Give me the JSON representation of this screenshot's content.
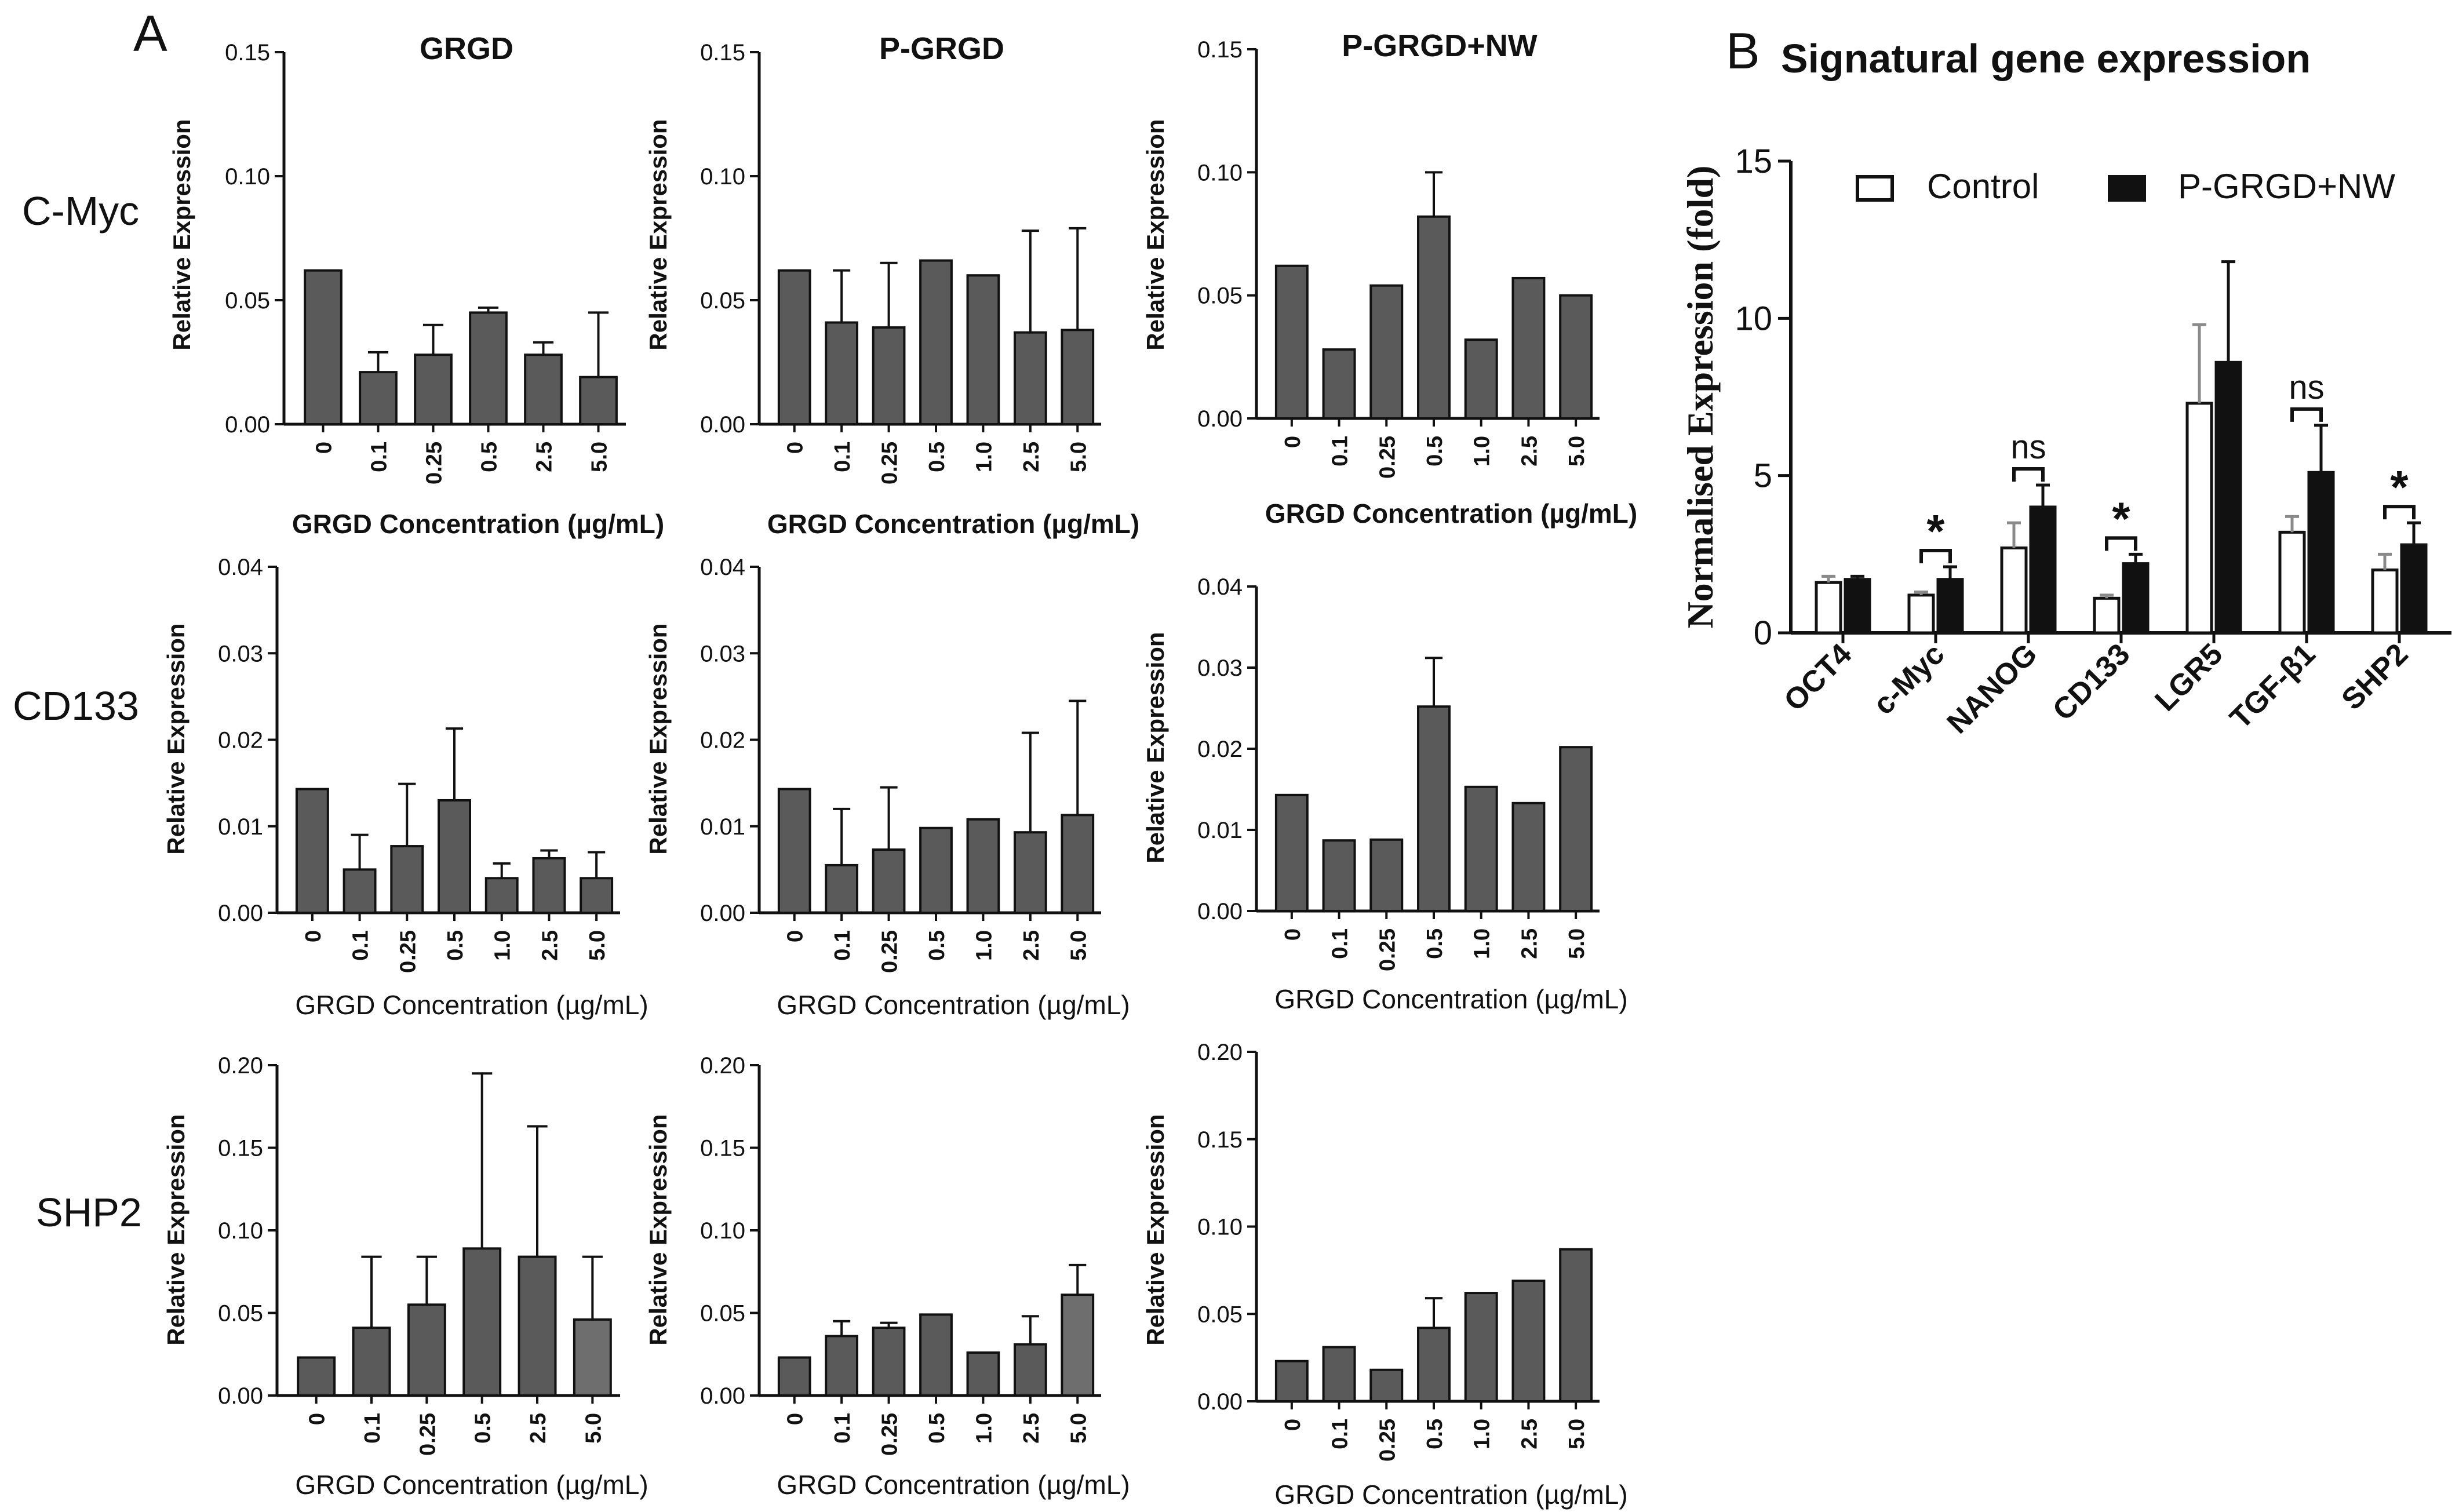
{
  "panel_labels": {
    "a": "A",
    "b": "B"
  },
  "row_labels": [
    "C-Myc",
    "CD133",
    "SHP2"
  ],
  "col_titles": [
    "GRGD",
    "P-GRGD",
    "P-GRGD+NW"
  ],
  "grid_ylabel": "Relative Expression",
  "grid_xlabel": "GRGD Concentration (µg/mL)",
  "colors": {
    "bar": "#5a5a5a",
    "bar_light": "#6e6e6e",
    "ink": "#111111",
    "control_fill": "#ffffff",
    "treat_fill": "#111111"
  },
  "chart_data": [
    {
      "id": "cmyc-grgd",
      "type": "bar",
      "title": "GRGD",
      "row": "C-Myc",
      "ylabel": "Relative Expression",
      "xlabel": "GRGD Concentration (µg/mL)",
      "ylim": [
        0,
        0.15
      ],
      "yticks": [
        "0.00",
        "0.05",
        "0.10",
        "0.15"
      ],
      "categories": [
        "0",
        "0.1",
        "0.25",
        "0.5",
        "2.5",
        "5.0"
      ],
      "values": [
        0.062,
        0.021,
        0.028,
        0.045,
        0.028,
        0.019
      ],
      "errors": [
        0,
        0.008,
        0.012,
        0.002,
        0.005,
        0.026
      ]
    },
    {
      "id": "cmyc-pgrgd",
      "type": "bar",
      "title": "P-GRGD",
      "row": "C-Myc",
      "ylabel": "Relative Expression",
      "xlabel": "GRGD Concentration (µg/mL)",
      "ylim": [
        0,
        0.15
      ],
      "yticks": [
        "0.00",
        "0.05",
        "0.10",
        "0.15"
      ],
      "categories": [
        "0",
        "0.1",
        "0.25",
        "0.5",
        "1.0",
        "2.5",
        "5.0"
      ],
      "values": [
        0.062,
        0.041,
        0.039,
        0.066,
        0.06,
        0.037,
        0.038
      ],
      "errors": [
        0,
        0.021,
        0.026,
        0,
        0,
        0.041,
        0.041
      ]
    },
    {
      "id": "cmyc-pgrgdnw",
      "type": "bar",
      "title": "P-GRGD+NW",
      "row": "C-Myc",
      "ylabel": "Relative Expression",
      "xlabel": "GRGD Concentration (µg/mL)",
      "ylim": [
        0,
        0.15
      ],
      "yticks": [
        "0.00",
        "0.05",
        "0.10",
        "0.15"
      ],
      "categories": [
        "0",
        "0.1",
        "0.25",
        "0.5",
        "1.0",
        "2.5",
        "5.0"
      ],
      "values": [
        0.062,
        0.028,
        0.054,
        0.082,
        0.032,
        0.057,
        0.05
      ],
      "errors": [
        0,
        0,
        0,
        0.018,
        0,
        0,
        0
      ]
    },
    {
      "id": "cd133-grgd",
      "type": "bar",
      "title": "",
      "row": "CD133",
      "ylabel": "Relative Expression",
      "xlabel": "GRGD Concentration (µg/mL)",
      "ylim": [
        0,
        0.04
      ],
      "yticks": [
        "0.00",
        "0.01",
        "0.02",
        "0.03",
        "0.04"
      ],
      "categories": [
        "0",
        "0.1",
        "0.25",
        "0.5",
        "1.0",
        "2.5",
        "5.0"
      ],
      "values": [
        0.0143,
        0.005,
        0.0077,
        0.013,
        0.004,
        0.0063,
        0.004
      ],
      "errors": [
        0,
        0.004,
        0.0072,
        0.0083,
        0.0017,
        0.0009,
        0.003
      ]
    },
    {
      "id": "cd133-pgrgd",
      "type": "bar",
      "title": "",
      "row": "CD133",
      "ylabel": "Relative Expression",
      "xlabel": "GRGD Concentration (µg/mL)",
      "ylim": [
        0,
        0.04
      ],
      "yticks": [
        "0.00",
        "0.01",
        "0.02",
        "0.03",
        "0.04"
      ],
      "categories": [
        "0",
        "0.1",
        "0.25",
        "0.5",
        "1.0",
        "2.5",
        "5.0"
      ],
      "values": [
        0.0143,
        0.0055,
        0.0073,
        0.0098,
        0.0108,
        0.0093,
        0.0113
      ],
      "errors": [
        0,
        0.0065,
        0.0072,
        0,
        0,
        0.0115,
        0.0132
      ]
    },
    {
      "id": "cd133-pgrgdnw",
      "type": "bar",
      "title": "",
      "row": "CD133",
      "ylabel": "Relative Expression",
      "xlabel": "GRGD Concentration (µg/mL)",
      "ylim": [
        0,
        0.04
      ],
      "yticks": [
        "0.00",
        "0.01",
        "0.02",
        "0.03",
        "0.04"
      ],
      "categories": [
        "0",
        "0.1",
        "0.25",
        "0.5",
        "1.0",
        "2.5",
        "5.0"
      ],
      "values": [
        0.0143,
        0.0087,
        0.0088,
        0.0252,
        0.0153,
        0.0133,
        0.0202
      ],
      "errors": [
        0,
        0,
        0,
        0.006,
        0,
        0,
        0
      ]
    },
    {
      "id": "shp2-grgd",
      "type": "bar",
      "title": "",
      "row": "SHP2",
      "ylabel": "Relative Expression",
      "xlabel": "GRGD Concentration (µg/mL)",
      "ylim": [
        0,
        0.2
      ],
      "yticks": [
        "0.00",
        "0.05",
        "0.10",
        "0.15",
        "0.20"
      ],
      "categories": [
        "0",
        "0.1",
        "0.25",
        "0.5",
        "2.5",
        "5.0"
      ],
      "values": [
        0.023,
        0.041,
        0.055,
        0.089,
        0.084,
        0.046
      ],
      "errors": [
        0,
        0.043,
        0.029,
        0.106,
        0.079,
        0.038
      ]
    },
    {
      "id": "shp2-pgrgd",
      "type": "bar",
      "title": "",
      "row": "SHP2",
      "ylabel": "Relative Expression",
      "xlabel": "GRGD Concentration (µg/mL)",
      "ylim": [
        0,
        0.2
      ],
      "yticks": [
        "0.00",
        "0.05",
        "0.10",
        "0.15",
        "0.20"
      ],
      "categories": [
        "0",
        "0.1",
        "0.25",
        "0.5",
        "1.0",
        "2.5",
        "5.0"
      ],
      "values": [
        0.023,
        0.036,
        0.041,
        0.049,
        0.026,
        0.031,
        0.061
      ],
      "errors": [
        0,
        0.009,
        0.003,
        0,
        0,
        0.017,
        0.018
      ]
    },
    {
      "id": "shp2-pgrgdnw",
      "type": "bar",
      "title": "",
      "row": "SHP2",
      "ylabel": "Relative Expression",
      "xlabel": "GRGD Concentration (µg/mL)",
      "ylim": [
        0,
        0.2
      ],
      "yticks": [
        "0.00",
        "0.05",
        "0.10",
        "0.15",
        "0.20"
      ],
      "categories": [
        "0",
        "0.1",
        "0.25",
        "0.5",
        "1.0",
        "2.5",
        "5.0"
      ],
      "values": [
        0.023,
        0.031,
        0.018,
        0.042,
        0.062,
        0.069,
        0.087
      ],
      "errors": [
        0,
        0,
        0,
        0.017,
        0,
        0,
        0
      ]
    },
    {
      "id": "signatural",
      "type": "bar",
      "title": "Signatural gene expression",
      "ylabel": "Normalised Expression (fold)",
      "xlabel": "",
      "ylim": [
        0,
        15
      ],
      "yticks": [
        "0",
        "5",
        "10",
        "15"
      ],
      "categories": [
        "OCT4",
        "c-Myc",
        "NANOG",
        "CD133",
        "LGR5",
        "TGF-β1",
        "SHP2"
      ],
      "series": [
        {
          "name": "Control",
          "values": [
            1.6,
            1.2,
            2.7,
            1.1,
            7.3,
            3.2,
            2.0
          ],
          "errors": [
            0.2,
            0.1,
            0.8,
            0.1,
            2.5,
            0.5,
            0.5
          ]
        },
        {
          "name": "P-GRGD+NW",
          "values": [
            1.7,
            1.7,
            4.0,
            2.2,
            8.6,
            5.1,
            2.8
          ],
          "errors": [
            0.1,
            0.4,
            0.7,
            0.3,
            3.2,
            1.5,
            0.7
          ]
        }
      ],
      "significance": [
        {
          "from": "c-Myc",
          "label": "*"
        },
        {
          "from": "NANOG",
          "label": "ns"
        },
        {
          "from": "CD133",
          "label": "*"
        },
        {
          "from": "TGF-β1",
          "label": "ns"
        },
        {
          "from": "SHP2",
          "label": "*"
        }
      ],
      "legend": "top"
    }
  ]
}
